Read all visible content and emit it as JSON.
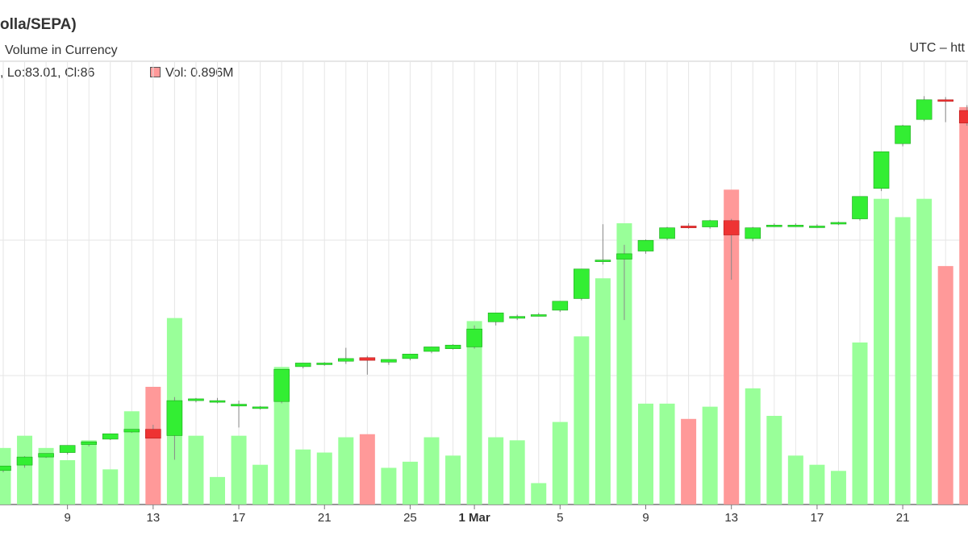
{
  "header": {
    "title": "olla/SEPA)",
    "subtitle": "Volume in Currency",
    "timezone": "UTC – htt",
    "ohlc_readout": ", Lo:83.01, Cl:86",
    "volume_readout": "Vol: 0.896M"
  },
  "colors": {
    "up_candle": "#33ee33",
    "down_candle": "#ee3333",
    "up_volume": "#99ff99",
    "down_volume": "#ff9999",
    "grid": "#e6e6e6",
    "wick": "#888888"
  },
  "chart_data": {
    "type": "candlestick",
    "title": "olla/SEPA)",
    "subtitle": "Volume in Currency",
    "x_tick_labels": [
      "9",
      "13",
      "17",
      "21",
      "25",
      "1 Mar",
      "5",
      "9",
      "13",
      "17",
      "21"
    ],
    "candles": [
      {
        "o": 56.8,
        "h": 57.3,
        "l": 56.6,
        "c": 57.3,
        "dir": "up"
      },
      {
        "o": 57.4,
        "h": 58.4,
        "l": 57.1,
        "c": 58.3,
        "dir": "up"
      },
      {
        "o": 58.3,
        "h": 58.7,
        "l": 58.2,
        "c": 58.7,
        "dir": "up"
      },
      {
        "o": 58.8,
        "h": 59.6,
        "l": 58.6,
        "c": 59.6,
        "dir": "up"
      },
      {
        "o": 59.7,
        "h": 60.0,
        "l": 59.5,
        "c": 60.0,
        "dir": "up"
      },
      {
        "o": 60.3,
        "h": 60.9,
        "l": 60.2,
        "c": 60.9,
        "dir": "up"
      },
      {
        "o": 61.1,
        "h": 61.4,
        "l": 61.0,
        "c": 61.4,
        "dir": "up"
      },
      {
        "o": 61.4,
        "h": 61.9,
        "l": 60.4,
        "c": 60.4,
        "dir": "down"
      },
      {
        "o": 60.7,
        "h": 65.0,
        "l": 58.0,
        "c": 64.6,
        "dir": "up"
      },
      {
        "o": 64.6,
        "h": 64.9,
        "l": 64.4,
        "c": 64.8,
        "dir": "up"
      },
      {
        "o": 64.6,
        "h": 64.9,
        "l": 64.3,
        "c": 64.6,
        "dir": "up"
      },
      {
        "o": 64.0,
        "h": 64.6,
        "l": 61.6,
        "c": 64.2,
        "dir": "up"
      },
      {
        "o": 63.8,
        "h": 64.0,
        "l": 63.6,
        "c": 63.9,
        "dir": "up"
      },
      {
        "o": 64.5,
        "h": 68.1,
        "l": 64.3,
        "c": 68.1,
        "dir": "up"
      },
      {
        "o": 68.4,
        "h": 68.8,
        "l": 68.2,
        "c": 68.8,
        "dir": "up"
      },
      {
        "o": 68.7,
        "h": 68.9,
        "l": 68.5,
        "c": 68.8,
        "dir": "up"
      },
      {
        "o": 69.0,
        "h": 70.5,
        "l": 68.7,
        "c": 69.3,
        "dir": "up"
      },
      {
        "o": 69.4,
        "h": 69.6,
        "l": 67.5,
        "c": 69.1,
        "dir": "down"
      },
      {
        "o": 68.9,
        "h": 69.2,
        "l": 68.6,
        "c": 69.2,
        "dir": "up"
      },
      {
        "o": 69.3,
        "h": 69.8,
        "l": 69.1,
        "c": 69.8,
        "dir": "up"
      },
      {
        "o": 70.1,
        "h": 70.6,
        "l": 69.9,
        "c": 70.6,
        "dir": "up"
      },
      {
        "o": 70.4,
        "h": 70.9,
        "l": 70.3,
        "c": 70.8,
        "dir": "up"
      },
      {
        "o": 70.6,
        "h": 73.0,
        "l": 70.4,
        "c": 72.6,
        "dir": "up"
      },
      {
        "o": 73.4,
        "h": 74.4,
        "l": 73.0,
        "c": 74.4,
        "dir": "up"
      },
      {
        "o": 73.8,
        "h": 74.2,
        "l": 73.6,
        "c": 74.0,
        "dir": "up"
      },
      {
        "o": 74.2,
        "h": 74.4,
        "l": 74.0,
        "c": 74.2,
        "dir": "up"
      },
      {
        "o": 74.7,
        "h": 75.7,
        "l": 74.5,
        "c": 75.7,
        "dir": "up"
      },
      {
        "o": 76.0,
        "h": 79.3,
        "l": 75.8,
        "c": 79.3,
        "dir": "up"
      },
      {
        "o": 80.2,
        "h": 84.3,
        "l": 79.8,
        "c": 80.3,
        "dir": "up"
      },
      {
        "o": 80.4,
        "h": 82.0,
        "l": 73.6,
        "c": 81.0,
        "dir": "up"
      },
      {
        "o": 81.3,
        "h": 82.6,
        "l": 81.0,
        "c": 82.5,
        "dir": "up"
      },
      {
        "o": 82.7,
        "h": 84.0,
        "l": 82.5,
        "c": 83.9,
        "dir": "up"
      },
      {
        "o": 84.1,
        "h": 84.4,
        "l": 83.8,
        "c": 83.9,
        "dir": "down"
      },
      {
        "o": 84.0,
        "h": 84.8,
        "l": 83.8,
        "c": 84.7,
        "dir": "up"
      },
      {
        "o": 84.7,
        "h": 84.9,
        "l": 78.1,
        "c": 83.1,
        "dir": "down"
      },
      {
        "o": 82.7,
        "h": 84.0,
        "l": 82.4,
        "c": 83.9,
        "dir": "up"
      },
      {
        "o": 84.2,
        "h": 84.4,
        "l": 84.0,
        "c": 84.2,
        "dir": "up"
      },
      {
        "o": 84.2,
        "h": 84.4,
        "l": 84.0,
        "c": 84.2,
        "dir": "up"
      },
      {
        "o": 84.0,
        "h": 84.3,
        "l": 83.9,
        "c": 84.1,
        "dir": "up"
      },
      {
        "o": 84.4,
        "h": 84.6,
        "l": 84.2,
        "c": 84.5,
        "dir": "up"
      },
      {
        "o": 84.9,
        "h": 87.4,
        "l": 84.7,
        "c": 87.4,
        "dir": "up"
      },
      {
        "o": 88.3,
        "h": 92.4,
        "l": 88.0,
        "c": 92.4,
        "dir": "up"
      },
      {
        "o": 93.3,
        "h": 95.4,
        "l": 93.0,
        "c": 95.3,
        "dir": "up"
      },
      {
        "o": 96.0,
        "h": 98.6,
        "l": 95.8,
        "c": 98.2,
        "dir": "up"
      },
      {
        "o": 98.2,
        "h": 98.5,
        "l": 95.7,
        "c": 98.1,
        "dir": "down"
      },
      {
        "o": 97.0,
        "h": 97.6,
        "l": 95.3,
        "c": 95.6,
        "dir": "down"
      }
    ],
    "volume": [
      1.85,
      2.25,
      1.85,
      1.45,
      2.1,
      1.15,
      3.05,
      3.85,
      6.1,
      2.25,
      0.9,
      2.25,
      1.3,
      4.5,
      1.8,
      1.7,
      2.2,
      2.3,
      1.2,
      1.4,
      2.2,
      1.6,
      6.0,
      2.2,
      2.1,
      0.7,
      2.7,
      5.5,
      7.4,
      9.2,
      3.3,
      3.3,
      2.8,
      3.2,
      10.3,
      3.8,
      2.9,
      1.6,
      1.3,
      1.1,
      5.3,
      10.0,
      9.4,
      10.0,
      7.8,
      13.0
    ],
    "price_axis": {
      "min": 53.0,
      "max": 102.5
    },
    "volume_axis": {
      "min": 0,
      "max": 14.5
    },
    "grid": true,
    "legend": "top-left"
  }
}
